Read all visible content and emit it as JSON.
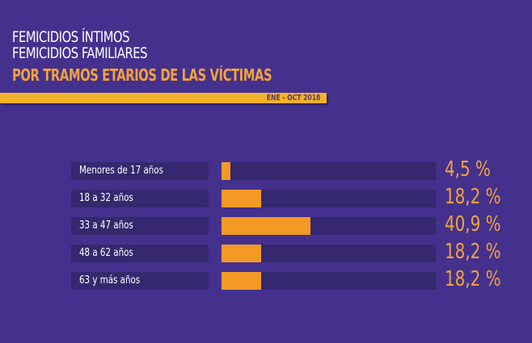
{
  "header": {
    "title_line1": "FEMICIDIOS ÍNTIMOS",
    "title_line2": "FEMICIDIOS FAMILIARES",
    "subtitle": "POR TRAMOS ETARIOS DE LAS VÍCTIMAS",
    "period": "ENE - OCT 2018"
  },
  "colors": {
    "background": "#44318e",
    "track": "#35286e",
    "bar": "#f39a26",
    "accent_text": "#f2a23a",
    "stripe": "#f4b12a"
  },
  "rows": [
    {
      "label": "Menores de 17 años",
      "value_text": "4,5 %",
      "width": "4.1%"
    },
    {
      "label": "18 a 32 años",
      "value_text": "18,2 %",
      "width": "18.5%"
    },
    {
      "label": "33 a 47 años",
      "value_text": "40,9 %",
      "width": "41.5%"
    },
    {
      "label": "48 a 62 años",
      "value_text": "18,2 %",
      "width": "18.5%"
    },
    {
      "label": "63 y más años",
      "value_text": "18,2 %",
      "width": "18.5%"
    }
  ],
  "chart_data": {
    "type": "bar",
    "orientation": "horizontal",
    "title": "FEMICIDIOS ÍNTIMOS / FEMICIDIOS FAMILIARES POR TRAMOS ETARIOS DE LAS VÍCTIMAS",
    "subtitle": "ENE - OCT 2018",
    "categories": [
      "Menores de 17 años",
      "18 a 32 años",
      "33 a 47 años",
      "48 a 62 años",
      "63 y más años"
    ],
    "values": [
      4.5,
      18.2,
      40.9,
      18.2,
      18.2
    ],
    "unit": "%",
    "xlabel": "",
    "ylabel": "",
    "grid": false,
    "legend": null
  }
}
